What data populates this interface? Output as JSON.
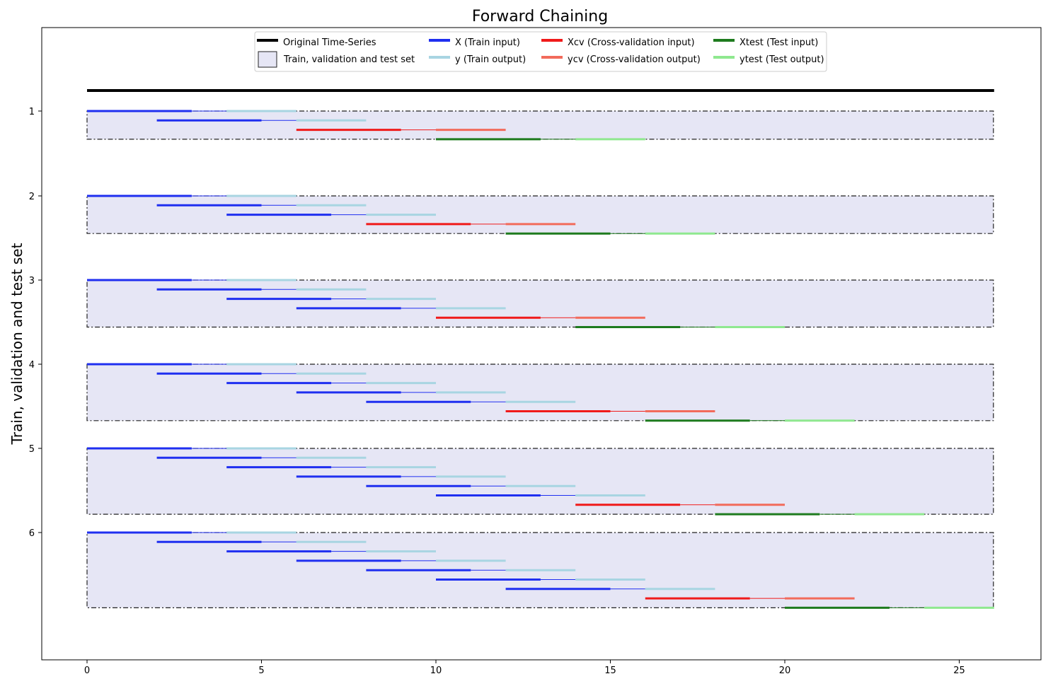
{
  "chart_data": {
    "type": "line",
    "title": "Forward Chaining",
    "xlabel": "",
    "ylabel": "Train, validation and test set",
    "xlim": [
      -1.3,
      27.4
    ],
    "x_ticks": [
      0,
      5,
      10,
      15,
      20,
      25
    ],
    "y_ticks": [
      1,
      2,
      3,
      4,
      5,
      6
    ],
    "grid": false,
    "legend_position": "top-center",
    "colors": {
      "original": "#000000",
      "x_train": "#1f2ff0",
      "y_train": "#a8d5e2",
      "x_cv": "#f01a1a",
      "y_cv": "#f26b5b",
      "x_test": "#1e7b1e",
      "y_test": "#8fe88f",
      "set_fill": "#e6e6f5",
      "set_border": "#222222"
    },
    "legend": [
      {
        "key": "original",
        "label": "Original Time-Series"
      },
      {
        "key": "x_train",
        "label": "X (Train input)"
      },
      {
        "key": "x_cv",
        "label": "Xcv (Cross-validation input)"
      },
      {
        "key": "x_test",
        "label": "Xtest (Test input)"
      },
      {
        "key": "set_box",
        "label": "Train, validation and test set"
      },
      {
        "key": "y_train",
        "label": "y (Train output)"
      },
      {
        "key": "y_cv",
        "label": "ycv (Cross-validation output)"
      },
      {
        "key": "y_test",
        "label": "ytest (Test output)"
      }
    ],
    "original_series": {
      "x_start": 0,
      "x_end": 26
    },
    "window": {
      "input_length": 3,
      "gap": 1,
      "output_length": 2,
      "step": 2
    },
    "sets": [
      {
        "id": 1,
        "train_starts": [
          0,
          2
        ],
        "cv_start": 6,
        "test_start": 10
      },
      {
        "id": 2,
        "train_starts": [
          0,
          2,
          4
        ],
        "cv_start": 8,
        "test_start": 12
      },
      {
        "id": 3,
        "train_starts": [
          0,
          2,
          4,
          6
        ],
        "cv_start": 10,
        "test_start": 14
      },
      {
        "id": 4,
        "train_starts": [
          0,
          2,
          4,
          6,
          8
        ],
        "cv_start": 12,
        "test_start": 16
      },
      {
        "id": 5,
        "train_starts": [
          0,
          2,
          4,
          6,
          8,
          10
        ],
        "cv_start": 14,
        "test_start": 18
      },
      {
        "id": 6,
        "train_starts": [
          0,
          2,
          4,
          6,
          8,
          10,
          12
        ],
        "cv_start": 16,
        "test_start": 20
      }
    ]
  }
}
